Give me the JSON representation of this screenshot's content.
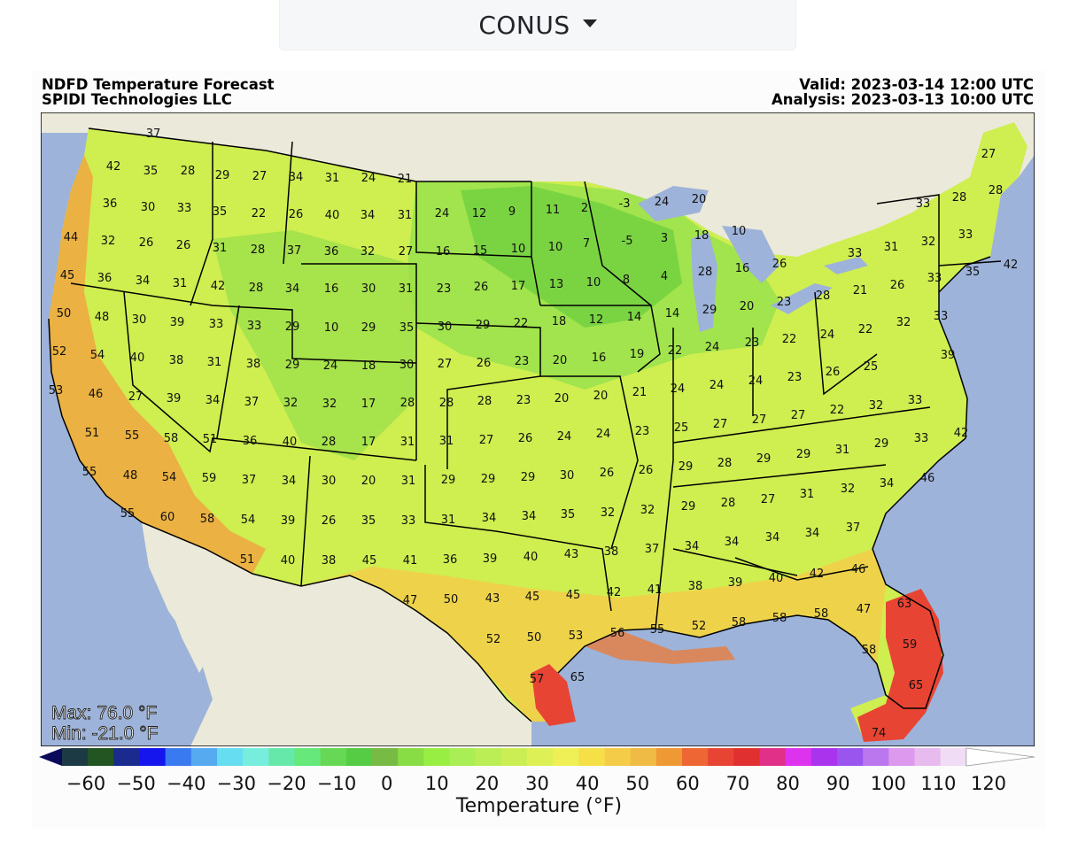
{
  "region_selector": {
    "label": "CONUS"
  },
  "map": {
    "title": "NDFD Temperature Forecast",
    "credit": "SPIDI Technologies LLC",
    "valid": "Valid: 2023-03-14 12:00 UTC",
    "analysis": "Analysis: 2023-03-13 10:00 UTC",
    "max_label": "Max: 76.0 °F",
    "min_label": "Min: -21.0 °F",
    "colors": {
      "ocean": "#9db3d9",
      "land_outside": "#ebe9d9",
      "border": "#000000"
    }
  },
  "colorbar": {
    "title": "Temperature (°F)",
    "ticks": [
      "−60",
      "−50",
      "−40",
      "−30",
      "−20",
      "−10",
      "0",
      "10",
      "20",
      "30",
      "40",
      "50",
      "60",
      "70",
      "80",
      "90",
      "100",
      "110",
      "120"
    ],
    "colors": [
      "#0a0a5a",
      "#1c3a44",
      "#225522",
      "#1a2a8e",
      "#1515ee",
      "#3a7af0",
      "#55aaf0",
      "#66ddf0",
      "#77eedd",
      "#66e8aa",
      "#66e87a",
      "#66d855",
      "#55cc44",
      "#77bb44",
      "#88dd44",
      "#99ee44",
      "#aaee55",
      "#bbee55",
      "#ccee55",
      "#ddf055",
      "#eef055",
      "#f5e048",
      "#f5cc48",
      "#f0bb44",
      "#ee9933",
      "#ee6633",
      "#e84433",
      "#e03030",
      "#e03088",
      "#dd33ee",
      "#aa33ee",
      "#9955ee",
      "#bb77ee",
      "#dd99ee",
      "#e8bbee",
      "#f0dcf4",
      "#ffffff"
    ]
  },
  "labels": [
    [
      "37",
      173,
      150
    ],
    [
      "42",
      128,
      187
    ],
    [
      "35",
      170,
      192
    ],
    [
      "28",
      212,
      192
    ],
    [
      "29",
      251,
      197
    ],
    [
      "27",
      293,
      198
    ],
    [
      "34",
      334,
      199
    ],
    [
      "31",
      375,
      200
    ],
    [
      "24",
      416,
      200
    ],
    [
      "21",
      457,
      201
    ],
    [
      "36",
      124,
      229
    ],
    [
      "30",
      167,
      233
    ],
    [
      "33",
      208,
      234
    ],
    [
      "35",
      248,
      238
    ],
    [
      "22",
      292,
      240
    ],
    [
      "26",
      334,
      241
    ],
    [
      "40",
      375,
      242
    ],
    [
      "34",
      415,
      242
    ],
    [
      "31",
      457,
      242
    ],
    [
      "24",
      499,
      240
    ],
    [
      "12",
      541,
      240
    ],
    [
      "9",
      578,
      238
    ],
    [
      "11",
      624,
      236
    ],
    [
      "2",
      660,
      234
    ],
    [
      "-3",
      705,
      229
    ],
    [
      "24",
      747,
      227
    ],
    [
      "20",
      789,
      224
    ],
    [
      "27",
      1116,
      173
    ],
    [
      "44",
      80,
      267
    ],
    [
      "32",
      122,
      271
    ],
    [
      "26",
      165,
      273
    ],
    [
      "26",
      207,
      276
    ],
    [
      "31",
      248,
      279
    ],
    [
      "28",
      291,
      281
    ],
    [
      "37",
      332,
      282
    ],
    [
      "36",
      374,
      283
    ],
    [
      "32",
      415,
      283
    ],
    [
      "27",
      458,
      283
    ],
    [
      "16",
      500,
      283
    ],
    [
      "15",
      542,
      282
    ],
    [
      "10",
      585,
      280
    ],
    [
      "10",
      627,
      278
    ],
    [
      "7",
      662,
      274
    ],
    [
      "-5",
      708,
      271
    ],
    [
      "3",
      750,
      268
    ],
    [
      "18",
      792,
      265
    ],
    [
      "10",
      834,
      260
    ],
    [
      "28",
      1083,
      222
    ],
    [
      "28",
      1124,
      214
    ],
    [
      "33",
      1042,
      229
    ],
    [
      "45",
      76,
      310
    ],
    [
      "36",
      118,
      313
    ],
    [
      "34",
      161,
      316
    ],
    [
      "31",
      203,
      319
    ],
    [
      "42",
      246,
      322
    ],
    [
      "28",
      289,
      324
    ],
    [
      "34",
      330,
      325
    ],
    [
      "16",
      374,
      325
    ],
    [
      "30",
      416,
      325
    ],
    [
      "31",
      458,
      325
    ],
    [
      "23",
      501,
      325
    ],
    [
      "26",
      543,
      323
    ],
    [
      "17",
      585,
      322
    ],
    [
      "13",
      628,
      320
    ],
    [
      "10",
      670,
      318
    ],
    [
      "8",
      707,
      315
    ],
    [
      "4",
      750,
      311
    ],
    [
      "28",
      796,
      306
    ],
    [
      "16",
      838,
      302
    ],
    [
      "26",
      880,
      297
    ],
    [
      "33",
      965,
      285
    ],
    [
      "31",
      1006,
      278
    ],
    [
      "32",
      1048,
      272
    ],
    [
      "33",
      1090,
      264
    ],
    [
      "42",
      1141,
      298
    ],
    [
      "35",
      1098,
      306
    ],
    [
      "33",
      1055,
      313
    ],
    [
      "50",
      72,
      353
    ],
    [
      "48",
      115,
      357
    ],
    [
      "30",
      157,
      360
    ],
    [
      "39",
      200,
      363
    ],
    [
      "33",
      244,
      365
    ],
    [
      "33",
      287,
      367
    ],
    [
      "29",
      330,
      368
    ],
    [
      "10",
      374,
      369
    ],
    [
      "29",
      416,
      369
    ],
    [
      "35",
      459,
      369
    ],
    [
      "30",
      502,
      368
    ],
    [
      "29",
      545,
      366
    ],
    [
      "22",
      588,
      364
    ],
    [
      "18",
      631,
      362
    ],
    [
      "12",
      673,
      360
    ],
    [
      "14",
      716,
      357
    ],
    [
      "14",
      759,
      353
    ],
    [
      "29",
      801,
      349
    ],
    [
      "20",
      843,
      345
    ],
    [
      "23",
      885,
      340
    ],
    [
      "28",
      929,
      333
    ],
    [
      "21",
      971,
      327
    ],
    [
      "26",
      1013,
      321
    ],
    [
      "52",
      67,
      396
    ],
    [
      "54",
      110,
      400
    ],
    [
      "40",
      155,
      403
    ],
    [
      "38",
      199,
      406
    ],
    [
      "31",
      242,
      408
    ],
    [
      "38",
      286,
      410
    ],
    [
      "29",
      330,
      411
    ],
    [
      "24",
      373,
      412
    ],
    [
      "18",
      416,
      412
    ],
    [
      "30",
      459,
      411
    ],
    [
      "27",
      502,
      410
    ],
    [
      "26",
      546,
      409
    ],
    [
      "23",
      589,
      407
    ],
    [
      "20",
      632,
      406
    ],
    [
      "16",
      676,
      403
    ],
    [
      "19",
      719,
      399
    ],
    [
      "22",
      762,
      395
    ],
    [
      "24",
      804,
      391
    ],
    [
      "23",
      849,
      386
    ],
    [
      "22",
      891,
      382
    ],
    [
      "24",
      934,
      377
    ],
    [
      "22",
      977,
      371
    ],
    [
      "32",
      1020,
      363
    ],
    [
      "33",
      1062,
      356
    ],
    [
      "53",
      63,
      440
    ],
    [
      "46",
      108,
      444
    ],
    [
      "27",
      153,
      447
    ],
    [
      "39",
      196,
      449
    ],
    [
      "34",
      240,
      451
    ],
    [
      "37",
      284,
      453
    ],
    [
      "32",
      328,
      454
    ],
    [
      "32",
      372,
      455
    ],
    [
      "17",
      416,
      455
    ],
    [
      "28",
      460,
      454
    ],
    [
      "28",
      504,
      454
    ],
    [
      "28",
      547,
      452
    ],
    [
      "23",
      591,
      451
    ],
    [
      "20",
      634,
      449
    ],
    [
      "20",
      678,
      446
    ],
    [
      "21",
      722,
      442
    ],
    [
      "24",
      765,
      438
    ],
    [
      "24",
      809,
      434
    ],
    [
      "24",
      853,
      429
    ],
    [
      "23",
      897,
      425
    ],
    [
      "26",
      940,
      419
    ],
    [
      "25",
      983,
      413
    ],
    [
      "39",
      1070,
      400
    ],
    [
      "51",
      104,
      488
    ],
    [
      "55",
      149,
      491
    ],
    [
      "58",
      193,
      494
    ],
    [
      "51",
      237,
      495
    ],
    [
      "36",
      282,
      497
    ],
    [
      "40",
      327,
      498
    ],
    [
      "28",
      371,
      498
    ],
    [
      "17",
      416,
      498
    ],
    [
      "31",
      460,
      498
    ],
    [
      "31",
      504,
      497
    ],
    [
      "27",
      549,
      496
    ],
    [
      "26",
      593,
      494
    ],
    [
      "24",
      637,
      492
    ],
    [
      "24",
      681,
      489
    ],
    [
      "23",
      725,
      486
    ],
    [
      "25",
      769,
      482
    ],
    [
      "27",
      813,
      478
    ],
    [
      "27",
      857,
      473
    ],
    [
      "27",
      901,
      468
    ],
    [
      "22",
      945,
      462
    ],
    [
      "32",
      989,
      457
    ],
    [
      "33",
      1033,
      451
    ],
    [
      "42",
      1085,
      488
    ],
    [
      "55",
      101,
      532
    ],
    [
      "48",
      147,
      536
    ],
    [
      "54",
      191,
      538
    ],
    [
      "59",
      236,
      539
    ],
    [
      "37",
      281,
      541
    ],
    [
      "34",
      326,
      542
    ],
    [
      "30",
      371,
      542
    ],
    [
      "20",
      416,
      542
    ],
    [
      "31",
      461,
      542
    ],
    [
      "29",
      506,
      541
    ],
    [
      "29",
      551,
      540
    ],
    [
      "29",
      596,
      538
    ],
    [
      "30",
      640,
      536
    ],
    [
      "26",
      685,
      533
    ],
    [
      "26",
      729,
      530
    ],
    [
      "29",
      774,
      526
    ],
    [
      "28",
      818,
      522
    ],
    [
      "29",
      862,
      517
    ],
    [
      "29",
      907,
      512
    ],
    [
      "31",
      951,
      507
    ],
    [
      "29",
      995,
      500
    ],
    [
      "33",
      1040,
      494
    ],
    [
      "55",
      144,
      579
    ],
    [
      "60",
      189,
      583
    ],
    [
      "58",
      234,
      585
    ],
    [
      "54",
      280,
      586
    ],
    [
      "39",
      325,
      587
    ],
    [
      "26",
      371,
      587
    ],
    [
      "35",
      416,
      587
    ],
    [
      "33",
      461,
      587
    ],
    [
      "31",
      506,
      586
    ],
    [
      "34",
      552,
      584
    ],
    [
      "34",
      597,
      582
    ],
    [
      "35",
      641,
      580
    ],
    [
      "32",
      686,
      578
    ],
    [
      "32",
      731,
      575
    ],
    [
      "29",
      777,
      571
    ],
    [
      "28",
      822,
      567
    ],
    [
      "27",
      867,
      563
    ],
    [
      "31",
      911,
      557
    ],
    [
      "32",
      957,
      551
    ],
    [
      "34",
      1001,
      545
    ],
    [
      "46",
      1047,
      539
    ],
    [
      "51",
      279,
      631
    ],
    [
      "40",
      325,
      632
    ],
    [
      "38",
      371,
      632
    ],
    [
      "45",
      417,
      632
    ],
    [
      "41",
      463,
      632
    ],
    [
      "36",
      508,
      631
    ],
    [
      "39",
      553,
      630
    ],
    [
      "40",
      599,
      628
    ],
    [
      "43",
      645,
      625
    ],
    [
      "38",
      690,
      622
    ],
    [
      "37",
      736,
      619
    ],
    [
      "34",
      781,
      616
    ],
    [
      "34",
      826,
      611
    ],
    [
      "34",
      872,
      606
    ],
    [
      "34",
      917,
      601
    ],
    [
      "37",
      963,
      595
    ],
    [
      "47",
      463,
      677
    ],
    [
      "50",
      509,
      676
    ],
    [
      "43",
      556,
      675
    ],
    [
      "45",
      601,
      673
    ],
    [
      "45",
      647,
      671
    ],
    [
      "42",
      693,
      668
    ],
    [
      "41",
      739,
      665
    ],
    [
      "38",
      785,
      661
    ],
    [
      "39",
      830,
      657
    ],
    [
      "40",
      876,
      652
    ],
    [
      "42",
      922,
      647
    ],
    [
      "46",
      969,
      642
    ],
    [
      "52",
      557,
      721
    ],
    [
      "50",
      603,
      719
    ],
    [
      "53",
      650,
      717
    ],
    [
      "56",
      697,
      714
    ],
    [
      "55",
      742,
      710
    ],
    [
      "52",
      789,
      706
    ],
    [
      "58",
      834,
      702
    ],
    [
      "58",
      880,
      697
    ],
    [
      "58",
      927,
      692
    ],
    [
      "47",
      975,
      687
    ],
    [
      "63",
      1021,
      681
    ],
    [
      "57",
      606,
      766
    ],
    [
      "65",
      652,
      764
    ],
    [
      "58",
      981,
      733
    ],
    [
      "59",
      1027,
      727
    ],
    [
      "65",
      1034,
      773
    ],
    [
      "74",
      992,
      827
    ]
  ]
}
